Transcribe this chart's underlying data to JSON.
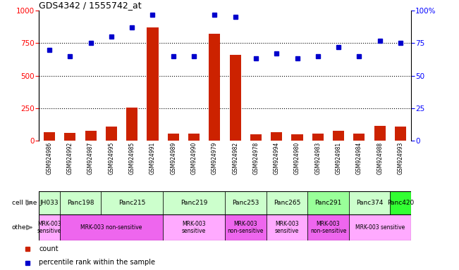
{
  "title": "GDS4342 / 1555742_at",
  "gsm_labels": [
    "GSM924986",
    "GSM924992",
    "GSM924987",
    "GSM924995",
    "GSM924985",
    "GSM924991",
    "GSM924989",
    "GSM924990",
    "GSM924979",
    "GSM924982",
    "GSM924978",
    "GSM924994",
    "GSM924980",
    "GSM924983",
    "GSM924981",
    "GSM924984",
    "GSM924988",
    "GSM924993"
  ],
  "bar_values": [
    65,
    60,
    75,
    110,
    255,
    870,
    55,
    55,
    820,
    660,
    50,
    65,
    50,
    55,
    75,
    55,
    115,
    110
  ],
  "dot_values": [
    70,
    65,
    75,
    80,
    87,
    97,
    65,
    65,
    97,
    95,
    63,
    67,
    63,
    65,
    72,
    65,
    77,
    75
  ],
  "cell_lines": [
    {
      "label": "JH033",
      "start": 0,
      "end": 1,
      "color": "#ccffcc"
    },
    {
      "label": "Panc198",
      "start": 1,
      "end": 3,
      "color": "#ccffcc"
    },
    {
      "label": "Panc215",
      "start": 3,
      "end": 6,
      "color": "#ccffcc"
    },
    {
      "label": "Panc219",
      "start": 6,
      "end": 9,
      "color": "#ccffcc"
    },
    {
      "label": "Panc253",
      "start": 9,
      "end": 11,
      "color": "#ccffcc"
    },
    {
      "label": "Panc265",
      "start": 11,
      "end": 13,
      "color": "#ccffcc"
    },
    {
      "label": "Panc291",
      "start": 13,
      "end": 15,
      "color": "#99ff99"
    },
    {
      "label": "Panc374",
      "start": 15,
      "end": 17,
      "color": "#ccffcc"
    },
    {
      "label": "Panc420",
      "start": 17,
      "end": 18,
      "color": "#33ff33"
    }
  ],
  "other_rows": [
    {
      "label": "MRK-003\nsensitive",
      "start": 0,
      "end": 1,
      "color": "#ffaaff"
    },
    {
      "label": "MRK-003 non-sensitive",
      "start": 1,
      "end": 6,
      "color": "#ee66ee"
    },
    {
      "label": "MRK-003\nsensitive",
      "start": 6,
      "end": 9,
      "color": "#ffaaff"
    },
    {
      "label": "MRK-003\nnon-sensitive",
      "start": 9,
      "end": 11,
      "color": "#ee66ee"
    },
    {
      "label": "MRK-003\nsensitive",
      "start": 11,
      "end": 13,
      "color": "#ffaaff"
    },
    {
      "label": "MRK-003\nnon-sensitive",
      "start": 13,
      "end": 15,
      "color": "#ee66ee"
    },
    {
      "label": "MRK-003 sensitive",
      "start": 15,
      "end": 18,
      "color": "#ffaaff"
    }
  ],
  "ylim_left": [
    0,
    1000
  ],
  "ylim_right": [
    0,
    100
  ],
  "yticks_left": [
    0,
    250,
    500,
    750,
    1000
  ],
  "yticks_right": [
    0,
    25,
    50,
    75,
    100
  ],
  "bar_color": "#cc2200",
  "dot_color": "#0000cc",
  "legend_items": [
    "count",
    "percentile rank within the sample"
  ],
  "bg_color": "#ffffff"
}
